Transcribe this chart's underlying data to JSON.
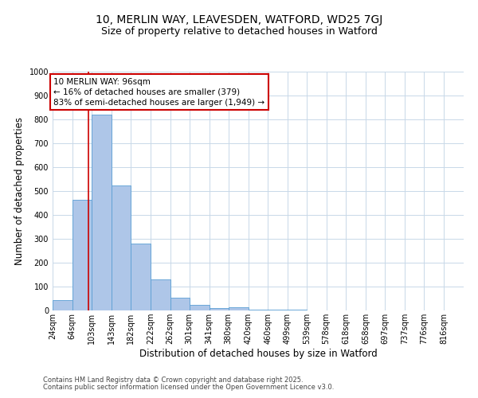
{
  "title1": "10, MERLIN WAY, LEAVESDEN, WATFORD, WD25 7GJ",
  "title2": "Size of property relative to detached houses in Watford",
  "xlabel": "Distribution of detached houses by size in Watford",
  "ylabel": "Number of detached properties",
  "bar_values": [
    45,
    465,
    820,
    525,
    280,
    130,
    55,
    25,
    10,
    12,
    5,
    3,
    5,
    0,
    0,
    0,
    0,
    0,
    0,
    0,
    0
  ],
  "bin_edges": [
    24,
    64,
    103,
    143,
    182,
    222,
    262,
    301,
    341,
    380,
    420,
    460,
    499,
    539,
    578,
    618,
    658,
    697,
    737,
    776,
    816
  ],
  "bin_labels": [
    "24sqm",
    "64sqm",
    "103sqm",
    "143sqm",
    "182sqm",
    "222sqm",
    "262sqm",
    "301sqm",
    "341sqm",
    "380sqm",
    "420sqm",
    "460sqm",
    "499sqm",
    "539sqm",
    "578sqm",
    "618sqm",
    "658sqm",
    "697sqm",
    "737sqm",
    "776sqm",
    "816sqm"
  ],
  "bar_color": "#aec6e8",
  "bar_edge_color": "#5a9fd4",
  "red_line_x": 96,
  "annotation_line1": "10 MERLIN WAY: 96sqm",
  "annotation_line2": "← 16% of detached houses are smaller (379)",
  "annotation_line3": "83% of semi-detached houses are larger (1,949) →",
  "annotation_box_color": "#ffffff",
  "annotation_box_edge_color": "#cc0000",
  "ylim": [
    0,
    1000
  ],
  "yticks": [
    0,
    100,
    200,
    300,
    400,
    500,
    600,
    700,
    800,
    900,
    1000
  ],
  "footnote1": "Contains HM Land Registry data © Crown copyright and database right 2025.",
  "footnote2": "Contains public sector information licensed under the Open Government Licence v3.0.",
  "background_color": "#ffffff",
  "grid_color": "#c8d8e8",
  "title_fontsize": 10,
  "subtitle_fontsize": 9,
  "axis_label_fontsize": 8.5,
  "tick_fontsize": 7,
  "annotation_fontsize": 7.5,
  "footnote_fontsize": 6
}
